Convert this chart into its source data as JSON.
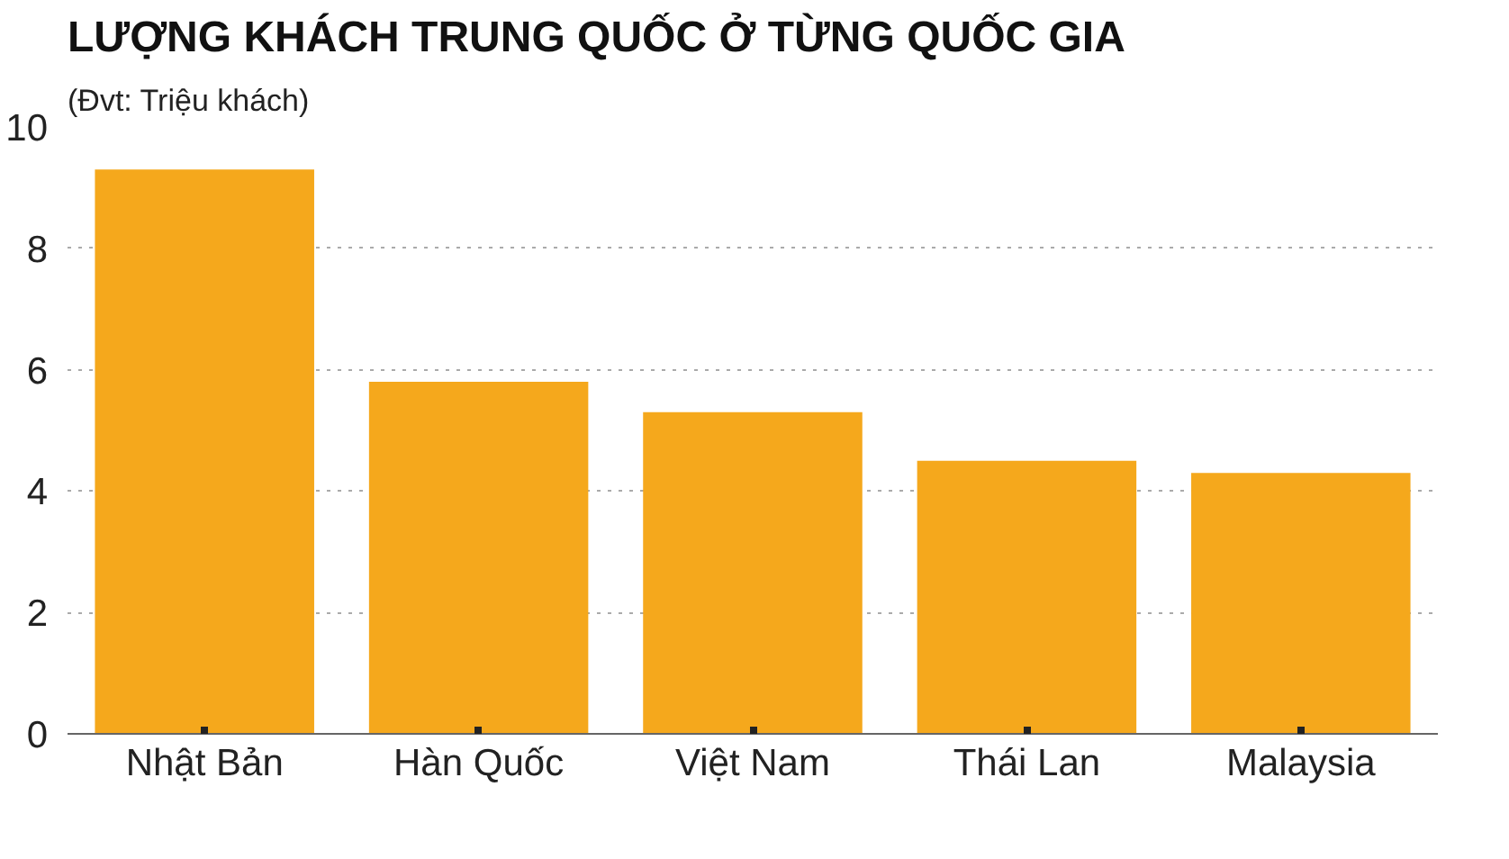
{
  "chart_data": {
    "type": "bar",
    "title": "LƯỢNG KHÁCH TRUNG QUỐC Ở TỪNG QUỐC GIA",
    "subtitle": "(Đvt: Triệu khách)",
    "categories": [
      "Nhật Bản",
      "Hàn Quốc",
      "Việt Nam",
      "Thái Lan",
      "Malaysia"
    ],
    "values": [
      9.3,
      5.8,
      5.3,
      4.5,
      4.3
    ],
    "color": "#f5a81c",
    "ylim": [
      0,
      10
    ],
    "yticks": [
      0,
      2,
      4,
      6,
      8,
      10
    ],
    "grid": "y"
  }
}
